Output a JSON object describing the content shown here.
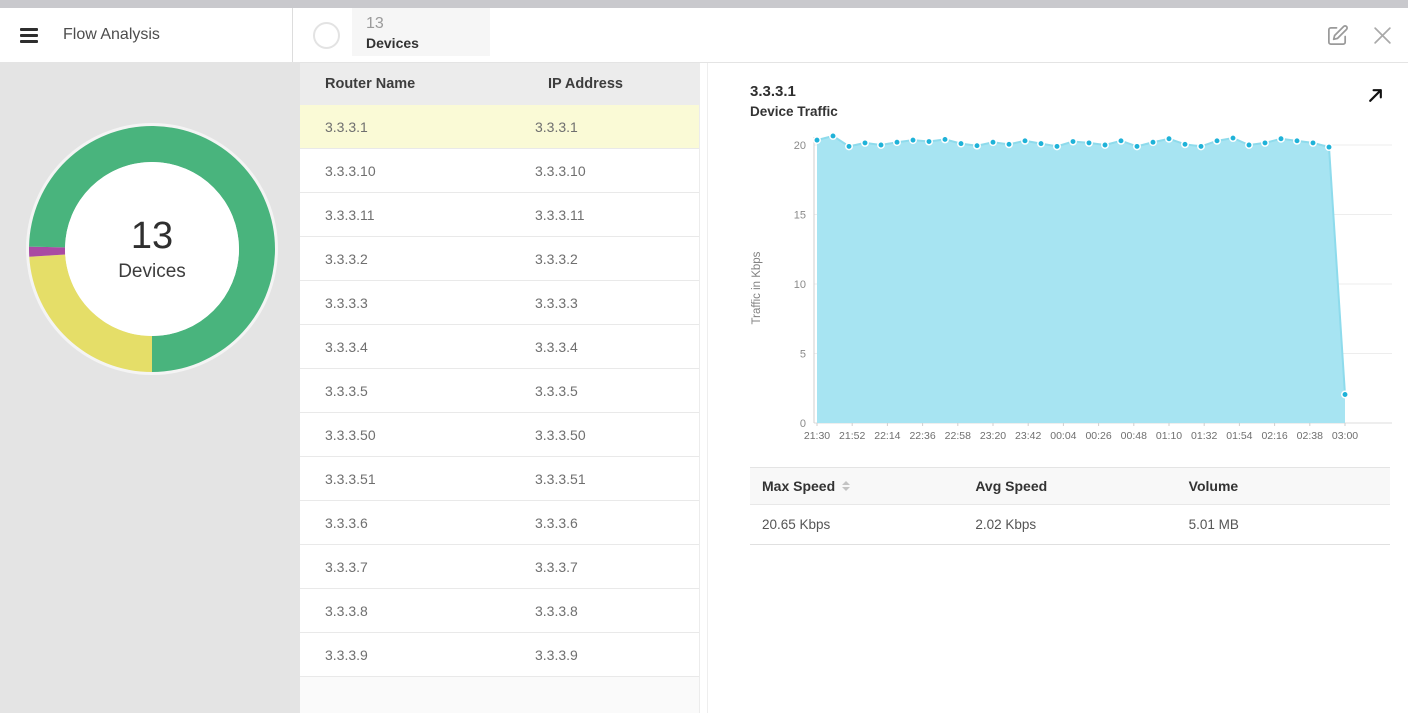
{
  "header": {
    "title": "Flow Analysis",
    "tab": {
      "count": "13",
      "label": "Devices"
    }
  },
  "donut": {
    "count": "13",
    "label": "Devices",
    "start_deg": 180,
    "segments": [
      {
        "name": "yellow",
        "color": "#e5de68",
        "fraction": 0.24
      },
      {
        "name": "purple",
        "color": "#a94ba3",
        "fraction": 0.013
      },
      {
        "name": "green",
        "color": "#49b47d",
        "fraction": 0.747
      }
    ]
  },
  "devices": {
    "columns": [
      "Router Name",
      "IP Address"
    ],
    "selected_index": 0,
    "rows": [
      {
        "router_name": "3.3.3.1",
        "ip_address": "3.3.3.1"
      },
      {
        "router_name": "3.3.3.10",
        "ip_address": "3.3.3.10"
      },
      {
        "router_name": "3.3.3.11",
        "ip_address": "3.3.3.11"
      },
      {
        "router_name": "3.3.3.2",
        "ip_address": "3.3.3.2"
      },
      {
        "router_name": "3.3.3.3",
        "ip_address": "3.3.3.3"
      },
      {
        "router_name": "3.3.3.4",
        "ip_address": "3.3.3.4"
      },
      {
        "router_name": "3.3.3.5",
        "ip_address": "3.3.3.5"
      },
      {
        "router_name": "3.3.3.50",
        "ip_address": "3.3.3.50"
      },
      {
        "router_name": "3.3.3.51",
        "ip_address": "3.3.3.51"
      },
      {
        "router_name": "3.3.3.6",
        "ip_address": "3.3.3.6"
      },
      {
        "router_name": "3.3.3.7",
        "ip_address": "3.3.3.7"
      },
      {
        "router_name": "3.3.3.8",
        "ip_address": "3.3.3.8"
      },
      {
        "router_name": "3.3.3.9",
        "ip_address": "3.3.3.9"
      }
    ]
  },
  "detail": {
    "title": "3.3.3.1",
    "subtitle": "Device Traffic",
    "stats": {
      "columns": [
        "Max Speed",
        "Avg Speed",
        "Volume"
      ],
      "row": [
        "20.65 Kbps",
        "2.02 Kbps",
        "5.01 MB"
      ]
    }
  },
  "chart_data": {
    "type": "area",
    "title": "Device Traffic",
    "ylabel": "Traffic in Kbps",
    "xlabel": "",
    "ylim": [
      0,
      21.5
    ],
    "yticks": [
      0,
      5,
      10,
      15,
      20
    ],
    "grid": true,
    "legend": "none",
    "x_labels": [
      "21:30",
      "21:52",
      "22:14",
      "22:36",
      "22:58",
      "23:20",
      "23:42",
      "00:04",
      "00:26",
      "00:48",
      "01:10",
      "01:32",
      "01:54",
      "02:16",
      "02:38",
      "03:00"
    ],
    "x_interval_minutes": 10,
    "values": [
      20.35,
      20.65,
      19.9,
      20.15,
      20.0,
      20.2,
      20.35,
      20.25,
      20.4,
      20.1,
      19.95,
      20.2,
      20.05,
      20.3,
      20.1,
      19.9,
      20.25,
      20.15,
      20.0,
      20.3,
      19.9,
      20.2,
      20.45,
      20.05,
      19.9,
      20.3,
      20.5,
      20.0,
      20.15,
      20.45,
      20.3,
      20.15,
      19.85,
      2.05
    ],
    "colors": {
      "fill": "#a7e4f2",
      "line": "#8edbec",
      "dot": "#1fb2d8"
    }
  }
}
